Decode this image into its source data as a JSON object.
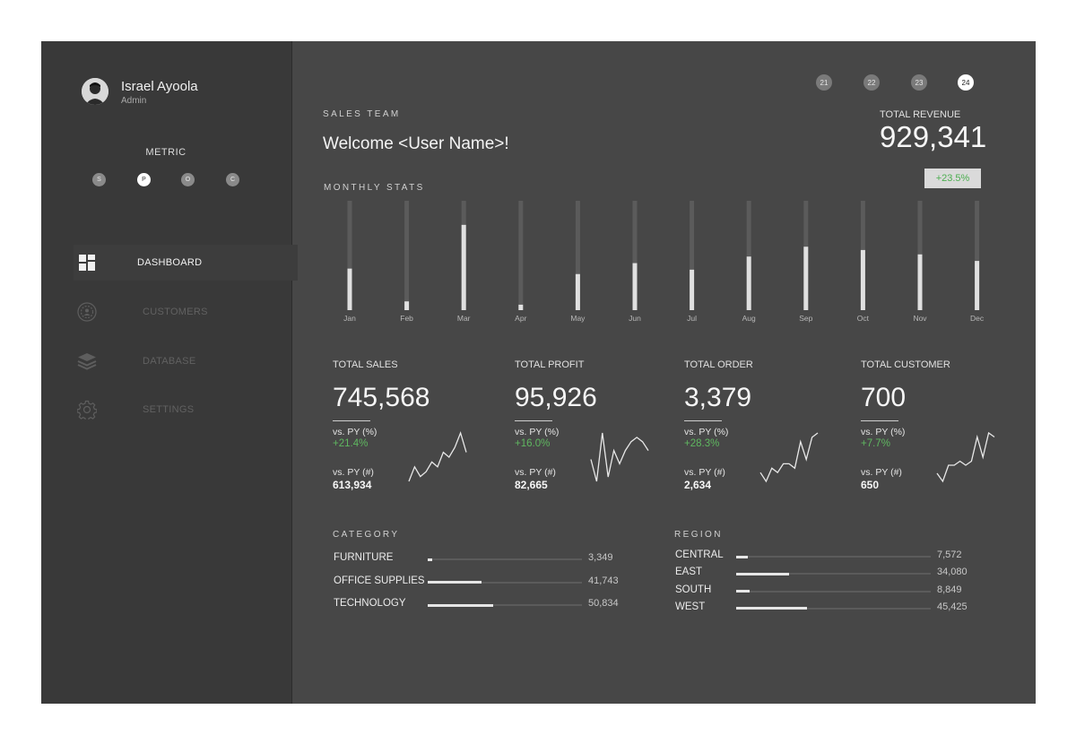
{
  "user": {
    "name": "Israel Ayoola",
    "role": "Admin"
  },
  "metric": {
    "title": "METRIC",
    "options": [
      {
        "label": "S",
        "active": false
      },
      {
        "label": "P",
        "active": true
      },
      {
        "label": "O",
        "active": false
      },
      {
        "label": "C",
        "active": false
      }
    ]
  },
  "nav": [
    {
      "label": "DASHBOARD",
      "icon": "dashboard-icon",
      "active": true
    },
    {
      "label": "CUSTOMERS",
      "icon": "customers-icon",
      "active": false
    },
    {
      "label": "DATABASE",
      "icon": "database-icon",
      "active": false
    },
    {
      "label": "SETTINGS",
      "icon": "settings-icon",
      "active": false
    }
  ],
  "years": [
    {
      "label": "21",
      "active": false
    },
    {
      "label": "22",
      "active": false
    },
    {
      "label": "23",
      "active": false
    },
    {
      "label": "24",
      "active": true
    }
  ],
  "header": {
    "section": "SALES TEAM",
    "welcome": "Welcome <User Name>!"
  },
  "revenue": {
    "label": "TOTAL REVENUE",
    "value": "929,341",
    "change": "+23.5%"
  },
  "monthly": {
    "title": "MONTHLY STATS"
  },
  "chart_data": {
    "type": "bar",
    "categories": [
      "Jan",
      "Feb",
      "Mar",
      "Apr",
      "May",
      "Jun",
      "Jul",
      "Aug",
      "Sep",
      "Oct",
      "Nov",
      "Dec"
    ],
    "values": [
      38,
      8,
      78,
      5,
      33,
      43,
      37,
      49,
      58,
      55,
      51,
      45
    ],
    "ylim": [
      0,
      100
    ],
    "grid": false
  },
  "kpis": [
    {
      "label": "TOTAL SALES",
      "value": "745,568",
      "pct_label": "vs. PY (%)",
      "pct": "+21.4%",
      "abs_label": "vs. PY (#)",
      "abs": "613,934",
      "sparkline": [
        2,
        5,
        3,
        4,
        6,
        5,
        8,
        7,
        9,
        12,
        8
      ]
    },
    {
      "label": "TOTAL PROFIT",
      "value": "95,926",
      "pct_label": "vs. PY (%)",
      "pct": "+16.0%",
      "abs_label": "vs. PY (#)",
      "abs": "82,665",
      "sparkline": [
        6,
        1,
        12,
        2,
        8,
        5,
        8,
        10,
        11,
        10,
        8
      ]
    },
    {
      "label": "TOTAL ORDER",
      "value": "3,379",
      "pct_label": "vs. PY (%)",
      "pct": "+28.3%",
      "abs_label": "vs. PY (#)",
      "abs": "2,634",
      "sparkline": [
        3,
        1,
        4,
        3,
        5,
        5,
        4,
        10,
        6,
        11,
        12
      ]
    },
    {
      "label": "TOTAL CUSTOMER",
      "value": "700",
      "pct_label": "vs. PY (%)",
      "pct": "+7.7%",
      "abs_label": "vs. PY (#)",
      "abs": "650",
      "sparkline": [
        3,
        1,
        5,
        5,
        6,
        5,
        6,
        12,
        7,
        13,
        12
      ]
    }
  ],
  "category": {
    "title": "CATEGORY",
    "max": 120000,
    "items": [
      {
        "label": "FURNITURE",
        "value": 3349,
        "display": "3,349"
      },
      {
        "label": "OFFICE SUPPLIES",
        "value": 41743,
        "display": "41,743"
      },
      {
        "label": "TECHNOLOGY",
        "value": 50834,
        "display": "50,834"
      }
    ]
  },
  "region": {
    "title": "REGION",
    "max": 125000,
    "items": [
      {
        "label": "CENTRAL",
        "value": 7572,
        "display": "7,572"
      },
      {
        "label": "EAST",
        "value": 34080,
        "display": "34,080"
      },
      {
        "label": "SOUTH",
        "value": 8849,
        "display": "8,849"
      },
      {
        "label": "WEST",
        "value": 45425,
        "display": "45,425"
      }
    ]
  },
  "colors": {
    "sidebar": "#393939",
    "main": "#474747",
    "accent_green": "#5fb760",
    "bar": "#e6e6e6",
    "track": "#5b5b5b"
  }
}
